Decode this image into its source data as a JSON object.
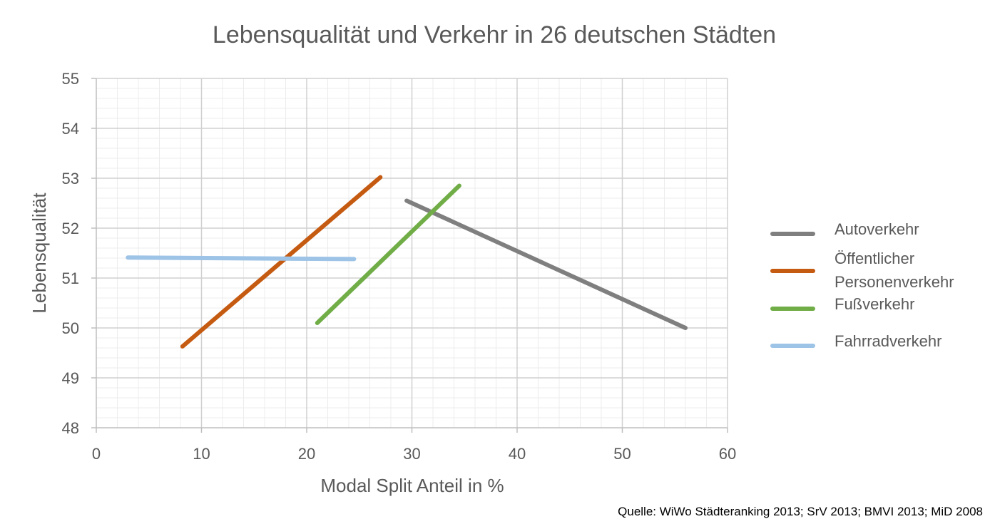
{
  "chart_data": {
    "type": "line",
    "title": "Lebensqualität und Verkehr in 26 deutschen Städten",
    "xlabel": "Modal Split Anteil in %",
    "ylabel": "Lebensqualität",
    "xlim": [
      0,
      60
    ],
    "ylim": [
      48,
      55
    ],
    "x_ticks": [
      "0",
      "10",
      "20",
      "30",
      "40",
      "50",
      "60"
    ],
    "y_ticks": [
      "48",
      "49",
      "50",
      "51",
      "52",
      "53",
      "54",
      "55"
    ],
    "grid": true,
    "legend_position": "right",
    "series": [
      {
        "name": "Autoverkehr",
        "color": "#7f7f7f",
        "x": [
          29.5,
          56.0
        ],
        "y": [
          52.55,
          50.0
        ]
      },
      {
        "name": "Öffentlicher Personenverkehr",
        "legend_lines": [
          "Öffentlicher",
          "Personenverkehr"
        ],
        "color": "#c55a11",
        "x": [
          8.2,
          27.0
        ],
        "y": [
          49.63,
          53.02
        ]
      },
      {
        "name": "Fußverkehr",
        "color": "#70ad47",
        "x": [
          21.0,
          34.5
        ],
        "y": [
          50.1,
          52.85
        ]
      },
      {
        "name": "Fahrradverkehr",
        "color": "#9dc3e6",
        "x": [
          3.0,
          24.5
        ],
        "y": [
          51.41,
          51.38
        ]
      }
    ]
  },
  "source": "Quelle: WiWo Städteranking 2013; SrV 2013; BMVI 2013; MiD 2008"
}
